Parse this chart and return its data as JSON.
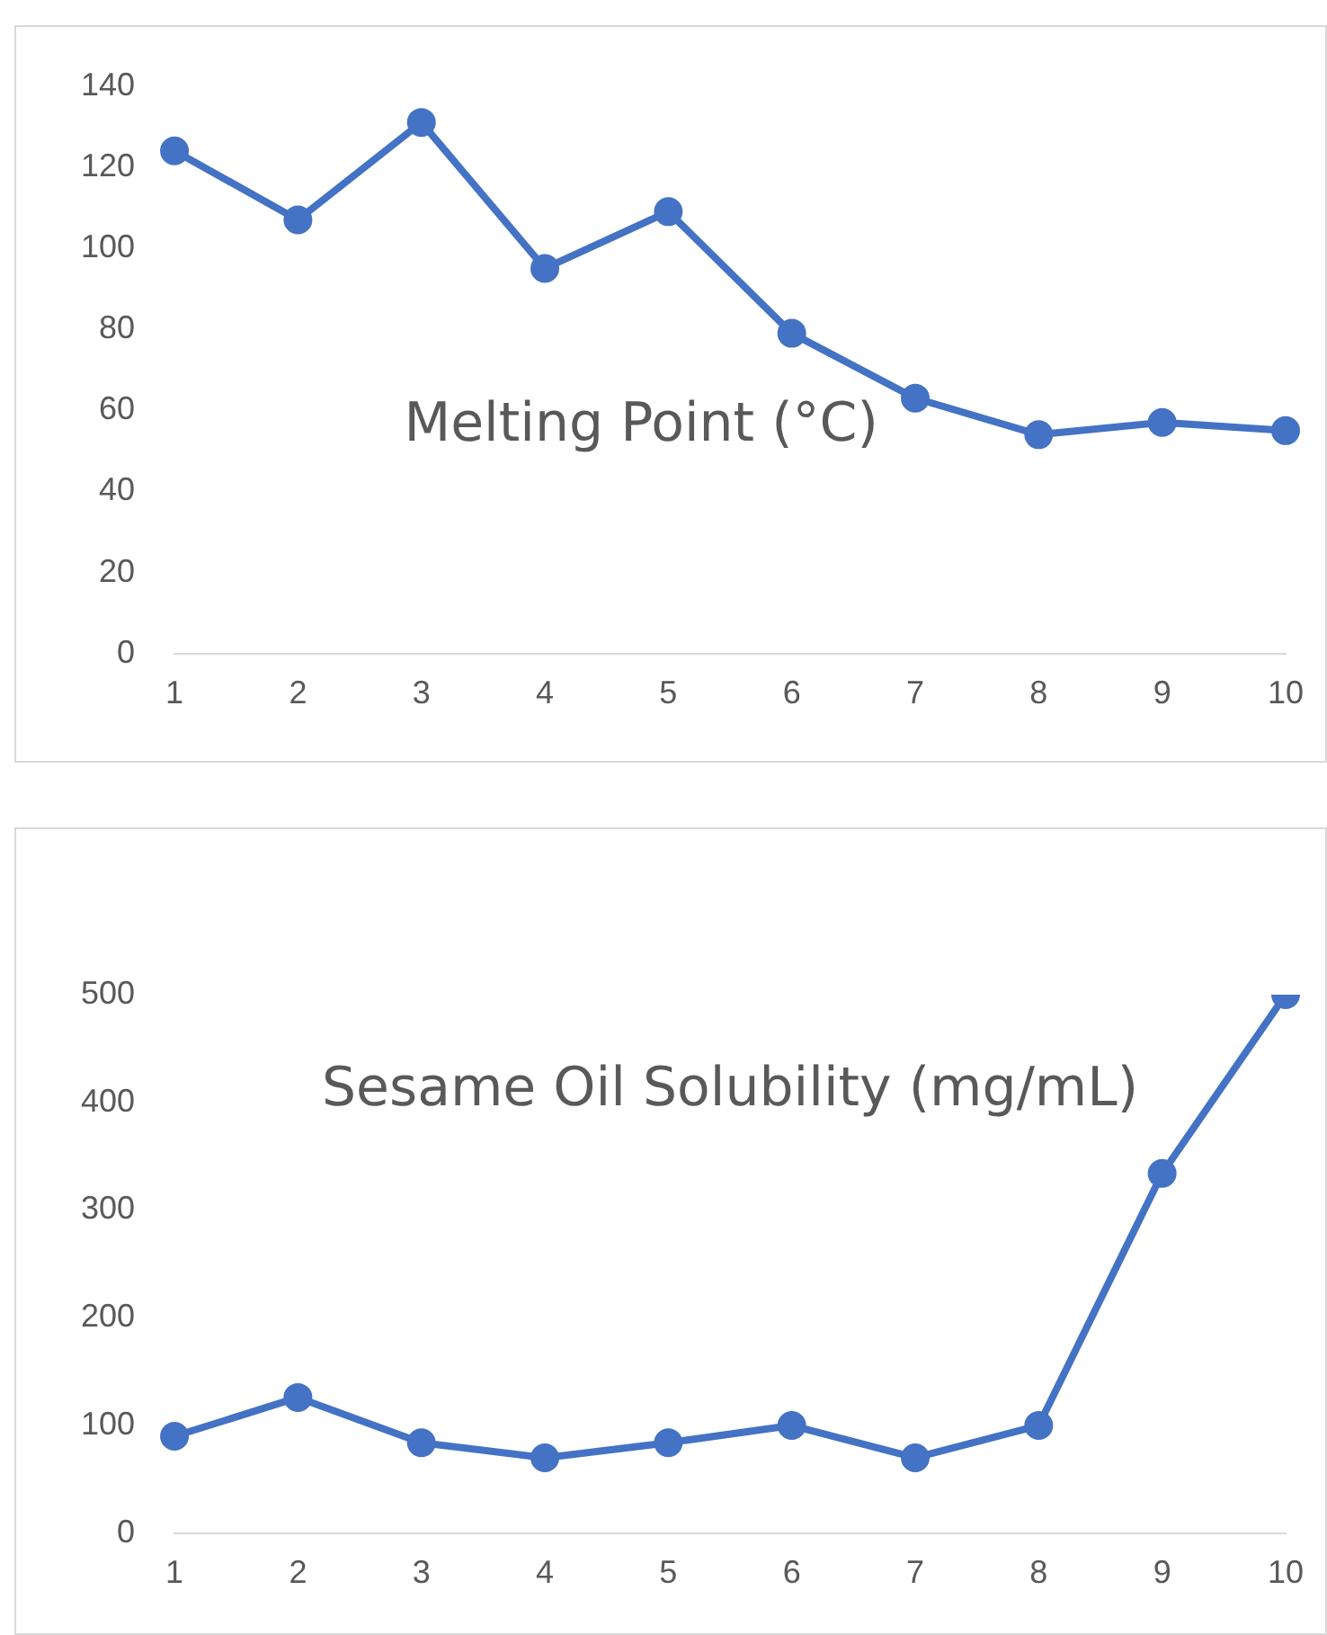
{
  "chart_data": [
    {
      "type": "line",
      "title": "Melting Point (°C)",
      "categories": [
        "1",
        "2",
        "3",
        "4",
        "5",
        "6",
        "7",
        "8",
        "9",
        "10"
      ],
      "series": [
        {
          "color": "#4472c4",
          "values": [
            124,
            107,
            131,
            95,
            109,
            79,
            63,
            54,
            57,
            55
          ]
        }
      ],
      "ylim": [
        0,
        140
      ],
      "yticks": [
        0,
        20,
        40,
        60,
        80,
        100,
        120,
        140
      ],
      "grid": false,
      "marker": "circle",
      "line_style": "solid"
    },
    {
      "type": "line",
      "title": "Sesame Oil Solubility (mg/mL)",
      "categories": [
        "1",
        "2",
        "3",
        "4",
        "5",
        "6",
        "7",
        "8",
        "9",
        "10"
      ],
      "series": [
        {
          "color": "#4472c4",
          "values": [
            90,
            126,
            84,
            70,
            84,
            100,
            70,
            100,
            334,
            500
          ]
        }
      ],
      "ylim": [
        0,
        500
      ],
      "yticks": [
        0,
        100,
        200,
        300,
        400,
        500
      ],
      "grid": false,
      "marker": "circle",
      "line_style": "solid"
    }
  ]
}
